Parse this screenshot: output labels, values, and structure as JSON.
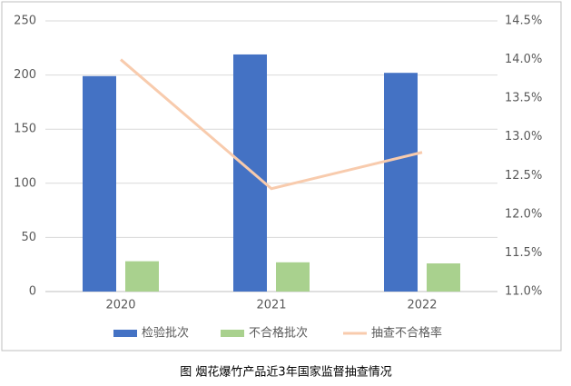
{
  "chart_data": {
    "type": "bar",
    "caption": "图  烟花爆竹产品近3年国家监督抽查情况",
    "categories": [
      "2020",
      "2021",
      "2022"
    ],
    "series": [
      {
        "name": "检验批次",
        "type": "bar",
        "color": "#4472c4",
        "values": [
          199,
          219,
          202
        ]
      },
      {
        "name": "不合格批次",
        "type": "bar",
        "color": "#a9d18e",
        "values": [
          28,
          27,
          26
        ]
      },
      {
        "name": "抽查不合格率",
        "type": "line",
        "axis": "y2",
        "color": "#f8cbad",
        "values": [
          14.0,
          12.33,
          12.8
        ]
      }
    ],
    "ylim": [
      0,
      250
    ],
    "yticks": [
      0,
      50,
      100,
      150,
      200,
      250
    ],
    "y2lim": [
      11,
      14.5
    ],
    "y2ticks": [
      {
        "value": 11,
        "label": "11.0%"
      },
      {
        "value": 11.5,
        "label": "11.5%"
      },
      {
        "value": 12,
        "label": "12.0%"
      },
      {
        "value": 12.5,
        "label": "12.5%"
      },
      {
        "value": 13,
        "label": "13.0%"
      },
      {
        "value": 13.5,
        "label": "13.5%"
      },
      {
        "value": 14,
        "label": "14.0%"
      },
      {
        "value": 14.5,
        "label": "14.5%"
      }
    ],
    "grid": true
  }
}
